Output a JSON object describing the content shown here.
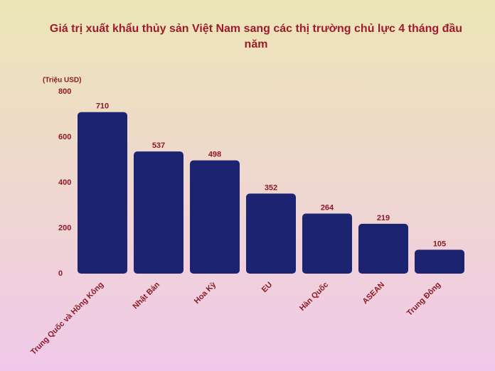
{
  "chart_data": {
    "type": "bar",
    "title": "Giá trị xuất khẩu thủy sản Việt Nam sang các thị trường chủ lực 4 tháng đầu năm",
    "y_axis_label": "(Triệu USD)",
    "categories": [
      "Trung Quốc và Hồng Kông",
      "Nhật Bản",
      "Hoa Kỳ",
      "EU",
      "Hàn Quốc",
      "ASEAN",
      "Trung Đông"
    ],
    "values": [
      710,
      537,
      498,
      352,
      264,
      219,
      105
    ],
    "color": "#1c2370",
    "ylim": [
      0,
      800
    ],
    "yticks": [
      0,
      200,
      400,
      600,
      800
    ],
    "grid": false
  }
}
